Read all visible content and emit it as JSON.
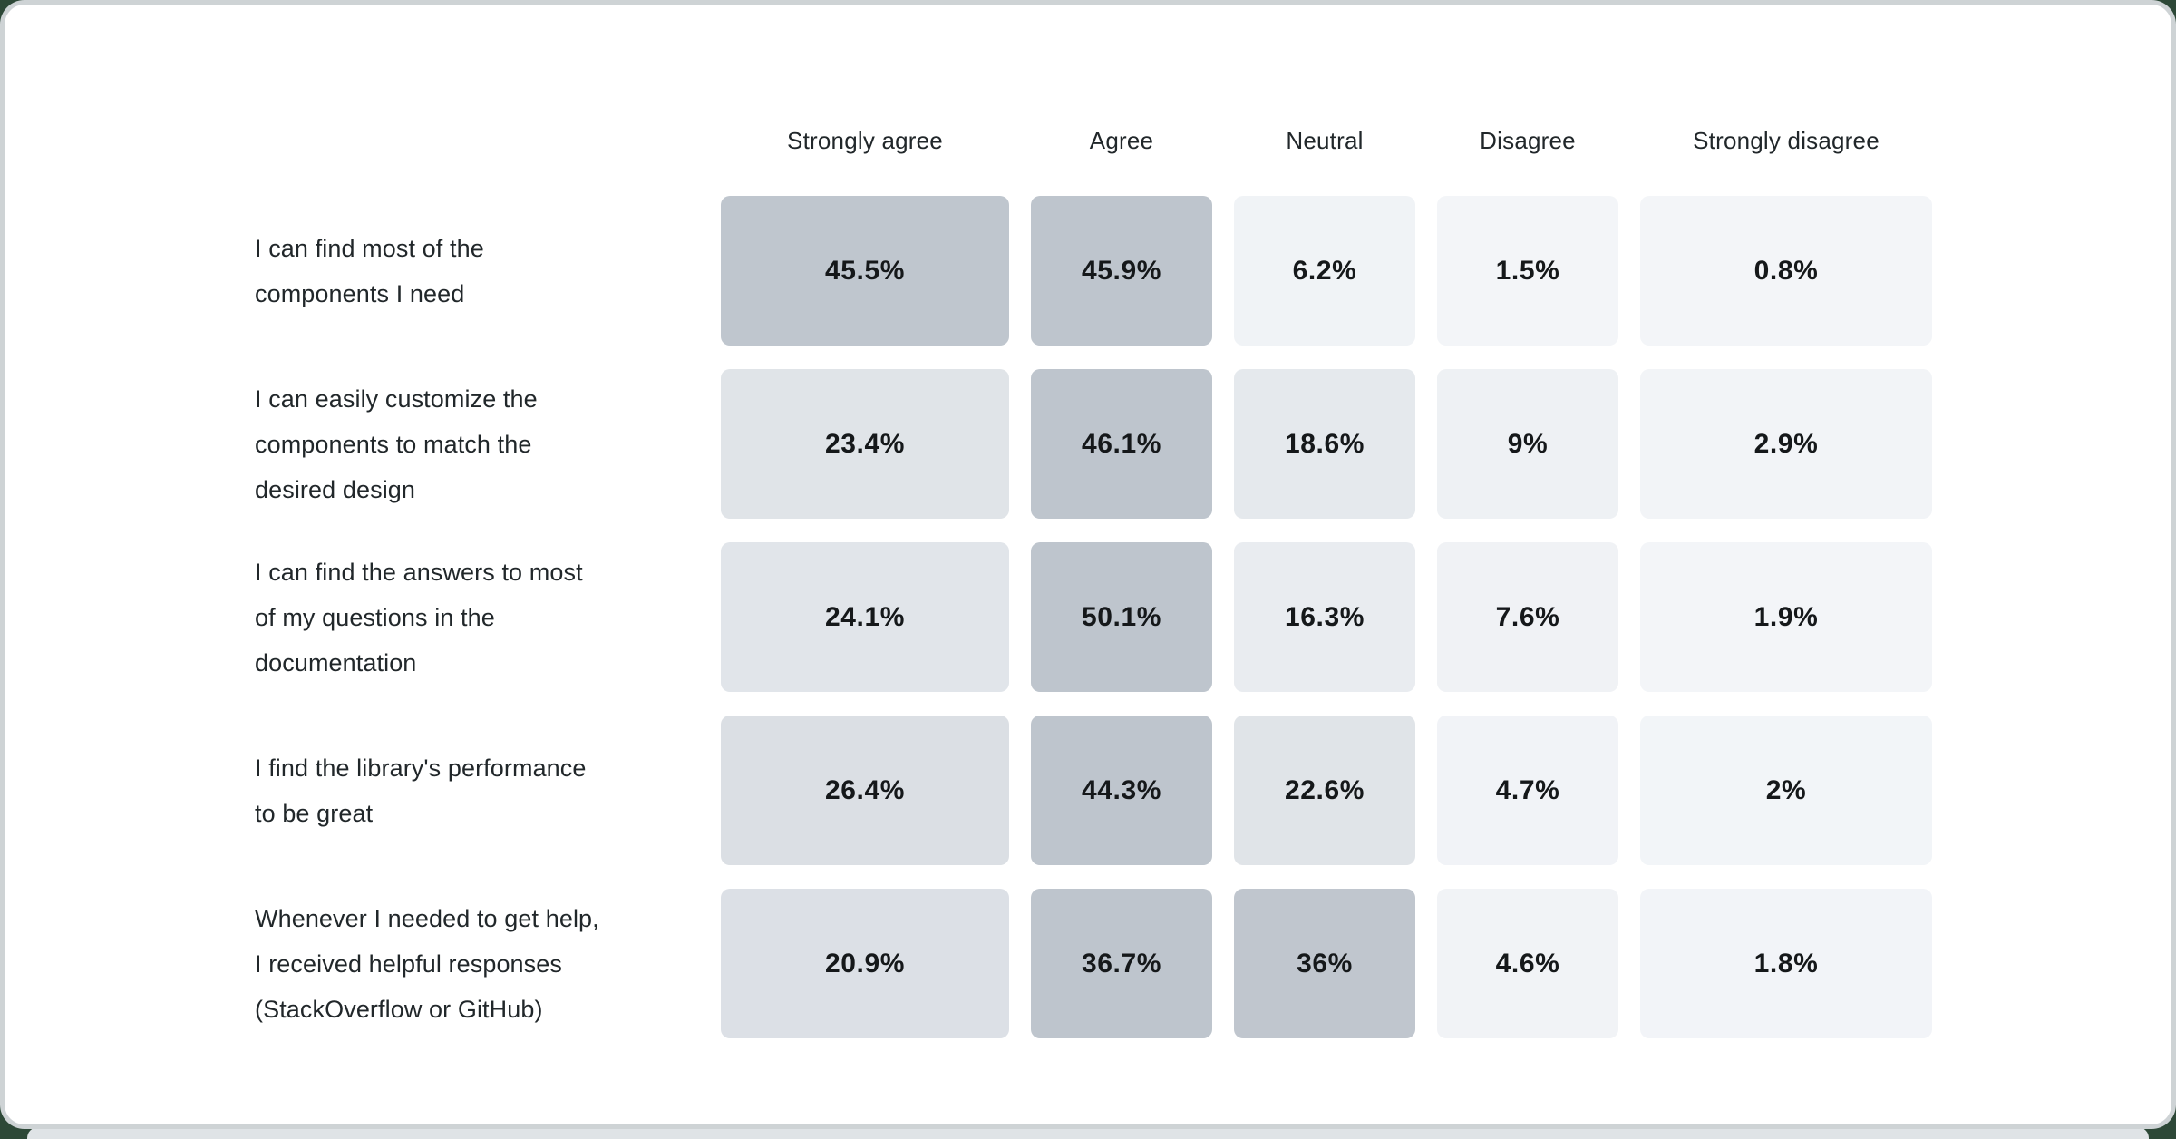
{
  "page": {
    "backdrop_color": "#2d4837",
    "card_color": "#ffffff",
    "card_ring_color": "#ced3d5",
    "next_strip_color": "#dfe3e6"
  },
  "chart_data": {
    "type": "heatmap",
    "title": "",
    "legend_position": "none",
    "grid": false,
    "columns": [
      "Strongly agree",
      "Agree",
      "Neutral",
      "Disagree",
      "Strongly disagree"
    ],
    "rows": [
      {
        "label": "I can find most of the\ncomponents I need",
        "values": [
          45.5,
          45.9,
          6.2,
          1.5,
          0.8
        ],
        "display": [
          "45.5%",
          "45.9%",
          "6.2%",
          "1.5%",
          "0.8%"
        ]
      },
      {
        "label": "I can easily customize the\ncomponents to match the\ndesired design",
        "values": [
          23.4,
          46.1,
          18.6,
          9,
          2.9
        ],
        "display": [
          "23.4%",
          "46.1%",
          "18.6%",
          "9%",
          "2.9%"
        ]
      },
      {
        "label": "I can find the answers to most\nof my questions in the\ndocumentation",
        "values": [
          24.1,
          50.1,
          16.3,
          7.6,
          1.9
        ],
        "display": [
          "24.1%",
          "50.1%",
          "16.3%",
          "7.6%",
          "1.9%"
        ]
      },
      {
        "label": "I find the library's performance\nto be great",
        "values": [
          26.4,
          44.3,
          22.6,
          4.7,
          2
        ],
        "display": [
          "26.4%",
          "44.3%",
          "22.6%",
          "4.7%",
          "2%"
        ]
      },
      {
        "label": "Whenever I needed to get help,\nI received helpful responses\n(StackOverflow or GitHub)",
        "values": [
          20.9,
          36.7,
          36,
          4.6,
          1.8
        ],
        "display": [
          "20.9%",
          "36.7%",
          "36%",
          "4.6%",
          "1.8%"
        ]
      }
    ],
    "color_scale": {
      "low": "#f3f5f8",
      "high": "#bec5cd",
      "normalize": "per-row-max",
      "gamma": 1.5
    },
    "value_format": "percent"
  }
}
